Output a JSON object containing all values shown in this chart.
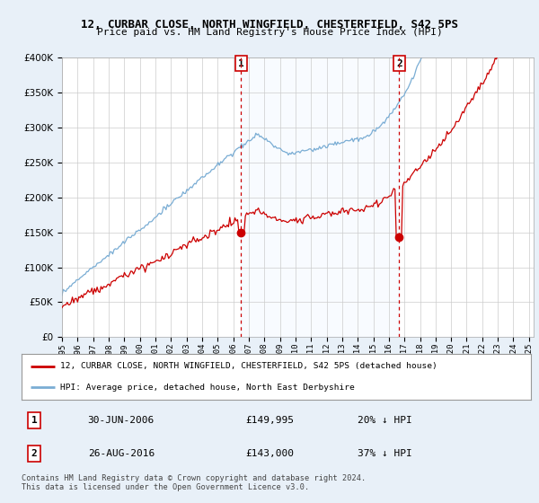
{
  "title": "12, CURBAR CLOSE, NORTH WINGFIELD, CHESTERFIELD, S42 5PS",
  "subtitle": "Price paid vs. HM Land Registry's House Price Index (HPI)",
  "ylim": [
    0,
    400000
  ],
  "yticks": [
    0,
    50000,
    100000,
    150000,
    200000,
    250000,
    300000,
    350000,
    400000
  ],
  "xlim_start": 1995.0,
  "xlim_end": 2025.3,
  "line1_color": "#cc0000",
  "line2_color": "#7aadd4",
  "vline_color": "#cc0000",
  "shade_color": "#ddeeff",
  "sale1_x": 2006.5,
  "sale1_y": 149995,
  "sale2_x": 2016.66,
  "sale2_y": 143000,
  "legend_line1": "12, CURBAR CLOSE, NORTH WINGFIELD, CHESTERFIELD, S42 5PS (detached house)",
  "legend_line2": "HPI: Average price, detached house, North East Derbyshire",
  "table_row1_num": "1",
  "table_row1_date": "30-JUN-2006",
  "table_row1_price": "£149,995",
  "table_row1_hpi": "20% ↓ HPI",
  "table_row2_num": "2",
  "table_row2_date": "26-AUG-2016",
  "table_row2_price": "£143,000",
  "table_row2_hpi": "37% ↓ HPI",
  "footer": "Contains HM Land Registry data © Crown copyright and database right 2024.\nThis data is licensed under the Open Government Licence v3.0.",
  "bg_color": "#e8f0f8",
  "plot_bg_color": "#ffffff"
}
